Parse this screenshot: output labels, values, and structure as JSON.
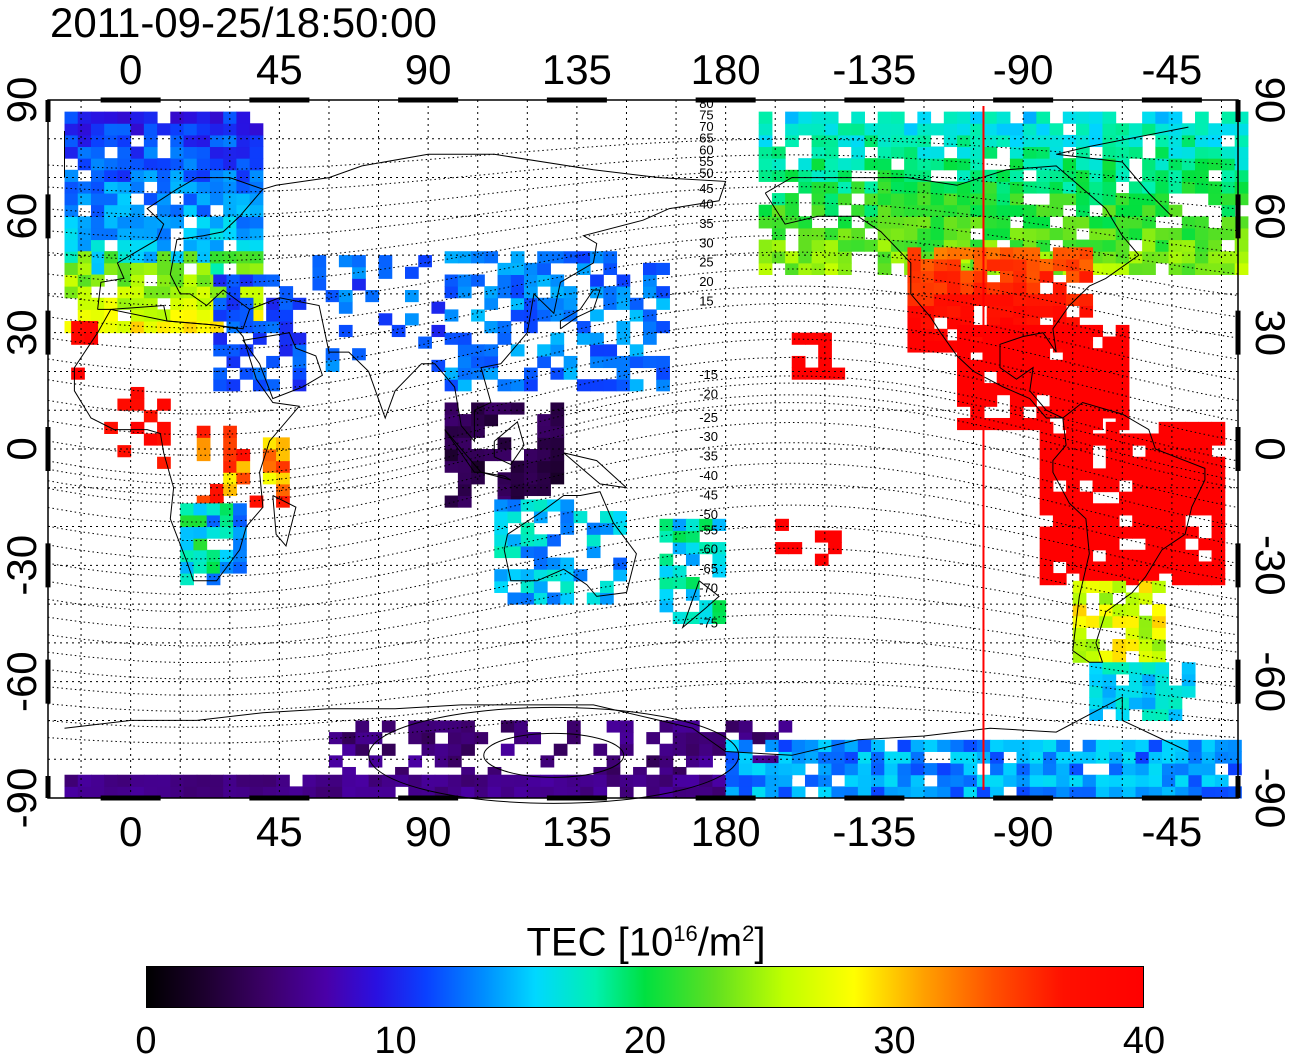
{
  "timestamp": "2011-09-25/18:50:00",
  "lon_ticks": [
    "0",
    "45",
    "90",
    "135",
    "180",
    "-135",
    "-90",
    "-45"
  ],
  "lat_ticks": [
    "90",
    "60",
    "30",
    "0",
    "-30",
    "-60",
    "-90"
  ],
  "mlat_labels": [
    "80",
    "75",
    "70",
    "65",
    "60",
    "55",
    "50",
    "45",
    "40",
    "35",
    "30",
    "25",
    "20",
    "15",
    "-15",
    "-20",
    "-25",
    "-30",
    "-35",
    "-40",
    "-45",
    "-50",
    "-55",
    "-60",
    "-65",
    "-70",
    "-75"
  ],
  "colorbar": {
    "title": "TEC  [10",
    "exp": "16",
    "unit_mid": "/m",
    "unit_exp": "2",
    "unit_end": "]",
    "ticks": [
      "0",
      "10",
      "20",
      "30",
      "40"
    ],
    "min": 0,
    "max": 40
  },
  "map": {
    "projection": "equirectangular",
    "lon_range": [
      -25,
      335
    ],
    "lat_range": [
      -90,
      90
    ],
    "grid": true,
    "marker_longitude": -102,
    "marker_color": "#ff0000"
  },
  "colors": {
    "background": "#ffffff",
    "frame": "#000000",
    "marker": "#ff0000"
  }
}
